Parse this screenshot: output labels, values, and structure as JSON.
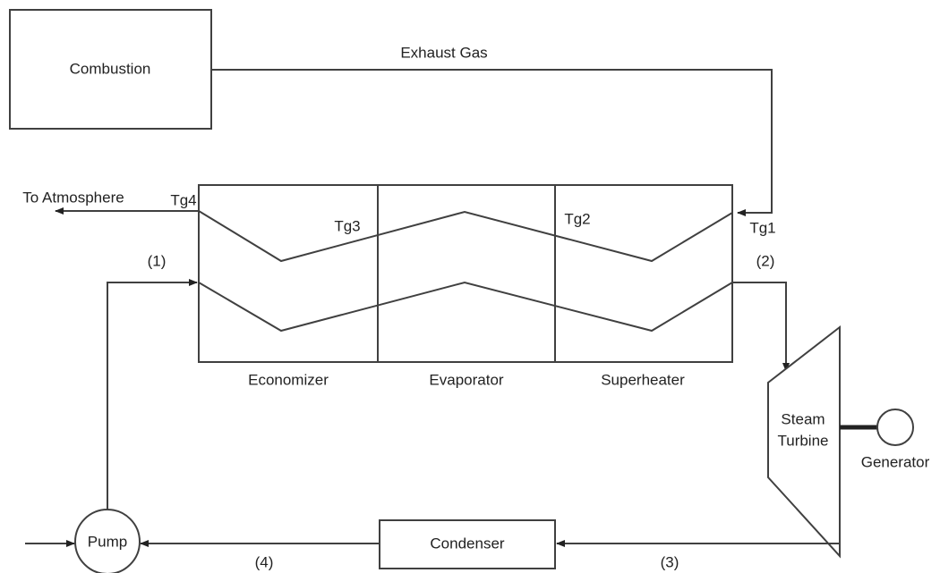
{
  "title": null,
  "nodes": {
    "combustion": "Combustion",
    "pump": "Pump",
    "condenser": "Condenser",
    "turbine": [
      "Steam",
      "Turbine"
    ],
    "generator": "Generator"
  },
  "sections": [
    "Economizer",
    "Evaporator",
    "Superheater"
  ],
  "flows": {
    "exhaust": "Exhaust Gas",
    "atmosphere": "To Atmosphere"
  },
  "temperatures": [
    "Tg4",
    "Tg3",
    "Tg2",
    "Tg1"
  ],
  "states": [
    "(1)",
    "(2)",
    "(3)",
    "(4)"
  ]
}
